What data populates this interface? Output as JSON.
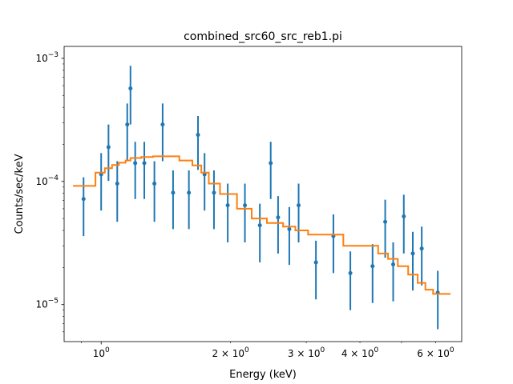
{
  "chart_data": {
    "type": "scatter",
    "title": "combined_src60_src_reb1.pi",
    "xlabel": "Energy (keV)",
    "ylabel": "Counts/sec/keV",
    "xscale": "log",
    "yscale": "log",
    "xlim": [
      0.82,
      6.9
    ],
    "ylim": [
      5e-06,
      0.00125
    ],
    "grid": false,
    "x_ticks": [
      {
        "value": 1,
        "label": "10^0",
        "base": "10",
        "exp": "0"
      },
      {
        "value": 2,
        "label": "2×10^0",
        "base": "2 × 10",
        "exp": "0"
      },
      {
        "value": 3,
        "label": "3×10^0",
        "base": "3 × 10",
        "exp": "0"
      },
      {
        "value": 4,
        "label": "4×10^0",
        "base": "4 × 10",
        "exp": "0"
      },
      {
        "value": 6,
        "label": "6×10^0",
        "base": "6 × 10",
        "exp": "0"
      }
    ],
    "y_ticks": [
      {
        "value": 1e-05,
        "label": "10^-5",
        "base": "10",
        "exp": "−5"
      },
      {
        "value": 0.0001,
        "label": "10^-4",
        "base": "10",
        "exp": "−4"
      },
      {
        "value": 0.001,
        "label": "10^-3",
        "base": "10",
        "exp": "−3"
      }
    ],
    "colors": {
      "data": "#1f77b4",
      "model": "#ff7f0e"
    },
    "series": [
      {
        "kind": "errorbar",
        "points": [
          {
            "x": 0.91,
            "y": 7.2e-05,
            "ylo": 3.6e-05,
            "yhi": 0.000108
          },
          {
            "x": 1.0,
            "y": 0.000114,
            "ylo": 5.8e-05,
            "yhi": 0.00017
          },
          {
            "x": 1.04,
            "y": 0.00019,
            "ylo": 0.000101,
            "yhi": 0.00029
          },
          {
            "x": 1.09,
            "y": 9.6e-05,
            "ylo": 4.7e-05,
            "yhi": 0.000146
          },
          {
            "x": 1.15,
            "y": 0.00029,
            "ylo": 0.000146,
            "yhi": 0.00043
          },
          {
            "x": 1.17,
            "y": 0.00057,
            "ylo": 0.00029,
            "yhi": 0.00087
          },
          {
            "x": 1.2,
            "y": 0.000141,
            "ylo": 7.2e-05,
            "yhi": 0.00021
          },
          {
            "x": 1.26,
            "y": 0.000141,
            "ylo": 7.2e-05,
            "yhi": 0.00021
          },
          {
            "x": 1.33,
            "y": 9.6e-05,
            "ylo": 4.7e-05,
            "yhi": 0.000146
          },
          {
            "x": 1.39,
            "y": 0.00029,
            "ylo": 0.000146,
            "yhi": 0.00043
          },
          {
            "x": 1.47,
            "y": 8.1e-05,
            "ylo": 4.1e-05,
            "yhi": 0.000123
          },
          {
            "x": 1.6,
            "y": 8.1e-05,
            "ylo": 4.1e-05,
            "yhi": 0.000123
          },
          {
            "x": 1.68,
            "y": 0.000239,
            "ylo": 0.000124,
            "yhi": 0.00034
          },
          {
            "x": 1.74,
            "y": 0.000114,
            "ylo": 5.8e-05,
            "yhi": 0.00017
          },
          {
            "x": 1.83,
            "y": 8.1e-05,
            "ylo": 4.1e-05,
            "yhi": 0.000123
          },
          {
            "x": 1.97,
            "y": 6.4e-05,
            "ylo": 3.2e-05,
            "yhi": 9.6e-05
          },
          {
            "x": 2.16,
            "y": 6.4e-05,
            "ylo": 3.2e-05,
            "yhi": 9.6e-05
          },
          {
            "x": 2.34,
            "y": 4.4e-05,
            "ylo": 2.2e-05,
            "yhi": 6.6e-05
          },
          {
            "x": 2.48,
            "y": 0.000141,
            "ylo": 7.2e-05,
            "yhi": 0.00021
          },
          {
            "x": 2.58,
            "y": 5.1e-05,
            "ylo": 2.6e-05,
            "yhi": 7.6e-05
          },
          {
            "x": 2.74,
            "y": 4.1e-05,
            "ylo": 2.1e-05,
            "yhi": 6.2e-05
          },
          {
            "x": 2.88,
            "y": 6.4e-05,
            "ylo": 3.2e-05,
            "yhi": 9.6e-05
          },
          {
            "x": 3.16,
            "y": 2.2e-05,
            "ylo": 1.1e-05,
            "yhi": 3.3e-05
          },
          {
            "x": 3.47,
            "y": 3.6e-05,
            "ylo": 1.8e-05,
            "yhi": 5.4e-05
          },
          {
            "x": 3.8,
            "y": 1.8e-05,
            "ylo": 9e-06,
            "yhi": 2.7e-05
          },
          {
            "x": 4.28,
            "y": 2.05e-05,
            "ylo": 1.03e-05,
            "yhi": 3.1e-05
          },
          {
            "x": 4.58,
            "y": 4.7e-05,
            "ylo": 2.4e-05,
            "yhi": 7.1e-05
          },
          {
            "x": 4.78,
            "y": 2.12e-05,
            "ylo": 1.06e-05,
            "yhi": 3.2e-05
          },
          {
            "x": 5.06,
            "y": 5.2e-05,
            "ylo": 2.6e-05,
            "yhi": 7.8e-05
          },
          {
            "x": 5.31,
            "y": 2.6e-05,
            "ylo": 1.3e-05,
            "yhi": 3.9e-05
          },
          {
            "x": 5.57,
            "y": 2.85e-05,
            "ylo": 1.43e-05,
            "yhi": 4.3e-05
          },
          {
            "x": 6.07,
            "y": 1.25e-05,
            "ylo": 6.3e-06,
            "yhi": 1.88e-05
          }
        ]
      },
      {
        "kind": "step",
        "points": [
          {
            "x0": 0.86,
            "x1": 0.97,
            "y": 9.2e-05
          },
          {
            "x0": 0.97,
            "x1": 1.02,
            "y": 0.000118
          },
          {
            "x0": 1.02,
            "x1": 1.06,
            "y": 0.000128
          },
          {
            "x0": 1.06,
            "x1": 1.1,
            "y": 0.000136
          },
          {
            "x0": 1.1,
            "x1": 1.14,
            "y": 0.000142
          },
          {
            "x0": 1.14,
            "x1": 1.17,
            "y": 0.000148
          },
          {
            "x0": 1.17,
            "x1": 1.24,
            "y": 0.000155
          },
          {
            "x0": 1.24,
            "x1": 1.32,
            "y": 0.000158
          },
          {
            "x0": 1.32,
            "x1": 1.52,
            "y": 0.00016
          },
          {
            "x0": 1.52,
            "x1": 1.63,
            "y": 0.000148
          },
          {
            "x0": 1.63,
            "x1": 1.71,
            "y": 0.000135
          },
          {
            "x0": 1.71,
            "x1": 1.78,
            "y": 0.000118
          },
          {
            "x0": 1.78,
            "x1": 1.89,
            "y": 9.6e-05
          },
          {
            "x0": 1.89,
            "x1": 2.07,
            "y": 7.9e-05
          },
          {
            "x0": 2.07,
            "x1": 2.24,
            "y": 6e-05
          },
          {
            "x0": 2.24,
            "x1": 2.43,
            "y": 5e-05
          },
          {
            "x0": 2.43,
            "x1": 2.65,
            "y": 4.6e-05
          },
          {
            "x0": 2.65,
            "x1": 2.83,
            "y": 4.3e-05
          },
          {
            "x0": 2.83,
            "x1": 3.03,
            "y": 4e-05
          },
          {
            "x0": 3.03,
            "x1": 3.66,
            "y": 3.7e-05
          },
          {
            "x0": 3.66,
            "x1": 4.41,
            "y": 3e-05
          },
          {
            "x0": 4.41,
            "x1": 4.65,
            "y": 2.6e-05
          },
          {
            "x0": 4.65,
            "x1": 4.9,
            "y": 2.35e-05
          },
          {
            "x0": 4.9,
            "x1": 5.18,
            "y": 2.05e-05
          },
          {
            "x0": 5.18,
            "x1": 5.45,
            "y": 1.75e-05
          },
          {
            "x0": 5.45,
            "x1": 5.68,
            "y": 1.5e-05
          },
          {
            "x0": 5.68,
            "x1": 5.92,
            "y": 1.32e-05
          },
          {
            "x0": 5.92,
            "x1": 6.5,
            "y": 1.22e-05
          }
        ]
      }
    ]
  }
}
